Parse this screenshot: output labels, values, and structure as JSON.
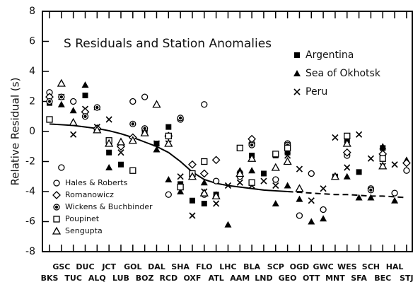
{
  "chart_data": {
    "type": "scatter",
    "title": "S Residuals and Station Anomalies",
    "ylabel": "Relative Residual (s)",
    "ylim": [
      -8,
      8
    ],
    "yticks": [
      -8,
      -6,
      -4,
      -2,
      0,
      2,
      4,
      6,
      8
    ],
    "categories": [
      "BKS",
      "GSC",
      "TUC",
      "DUC",
      "ALQ",
      "JCT",
      "LUB",
      "GOL",
      "BOZ",
      "DAL",
      "RCD",
      "SHA",
      "OXF",
      "FLO",
      "ATL",
      "LHC",
      "AAM",
      "BLA",
      "LND",
      "SCP",
      "GEO",
      "OGD",
      "OTT",
      "GWC",
      "MNT",
      "WES",
      "SFA",
      "SCH",
      "BEC",
      "HAL",
      "STJ"
    ],
    "series": [
      {
        "name": "Argentina",
        "marker": "filled-square",
        "color": "#000",
        "legend": "upper-right",
        "values": [
          1.9,
          null,
          null,
          2.4,
          null,
          -1.4,
          -2.2,
          null,
          0,
          -0.8,
          0.3,
          -3.5,
          -4.6,
          -4.8,
          -4.2,
          null,
          -2.8,
          -1.6,
          -2.8,
          -1.6,
          -1.4,
          null,
          null,
          null,
          -3.0,
          -0.6,
          -2.7,
          null,
          -1.1,
          null,
          null
        ]
      },
      {
        "name": "Sea of Okhotsk",
        "marker": "filled-triangle",
        "color": "#000",
        "legend": "upper-right",
        "values": [
          null,
          1.8,
          1.4,
          3.1,
          1.6,
          -2.4,
          -0.8,
          null,
          null,
          -1.2,
          -3.2,
          -4.0,
          -2.8,
          -3.4,
          -4.2,
          -6.2,
          -2.6,
          -2.6,
          null,
          -4.8,
          -3.6,
          -4.5,
          -6.0,
          -5.8,
          -3.0,
          -3.0,
          -4.4,
          -4.4,
          -1.0,
          -4.6,
          -1.9
        ]
      },
      {
        "name": "Peru",
        "marker": "cross",
        "color": "#000",
        "legend": "upper-right",
        "values": [
          2.2,
          2.3,
          -0.2,
          1.5,
          0.3,
          0.8,
          -1.4,
          -0.5,
          -0.1,
          -0.8,
          -0.8,
          -3.0,
          -5.6,
          -4.0,
          -4.8,
          -3.6,
          -3.4,
          -3.6,
          -3.3,
          -3.6,
          -1.6,
          -2.5,
          -4.6,
          -3.8,
          -0.4,
          -2.4,
          -0.2,
          -1.8,
          -2.3,
          -2.2,
          null
        ]
      },
      {
        "name": "Hales & Roberts",
        "marker": "open-circle",
        "color": "#000",
        "legend": "lower-left",
        "values": [
          2.6,
          -2.4,
          2.0,
          null,
          0.1,
          null,
          null,
          2.0,
          2.3,
          null,
          -4.2,
          0.8,
          null,
          1.8,
          -3.3,
          null,
          -3.0,
          -0.8,
          null,
          -3.2,
          -0.8,
          -5.6,
          -2.8,
          -5.2,
          null,
          -1.6,
          null,
          -3.8,
          null,
          -4.1,
          -2.6
        ]
      },
      {
        "name": "Romanowicz",
        "marker": "open-diamond",
        "color": "#000",
        "legend": "lower-left",
        "values": [
          2.3,
          null,
          null,
          1.3,
          0.2,
          null,
          -1.0,
          -0.4,
          null,
          null,
          -0.3,
          null,
          -2.2,
          -2.8,
          -1.9,
          null,
          null,
          -0.5,
          null,
          null,
          null,
          null,
          null,
          null,
          null,
          -1.4,
          null,
          null,
          -1.5,
          null,
          -2.1
        ]
      },
      {
        "name": "Wickens & Buchbinder",
        "marker": "half-circle",
        "color": "#000",
        "legend": "lower-left",
        "values": [
          2.0,
          2.3,
          null,
          1.0,
          1.6,
          null,
          null,
          0.5,
          0.2,
          null,
          null,
          0.9,
          null,
          -4.2,
          null,
          null,
          null,
          -0.9,
          null,
          null,
          -0.9,
          null,
          null,
          null,
          null,
          null,
          null,
          -3.9,
          null,
          null,
          null
        ]
      },
      {
        "name": "Poupinet",
        "marker": "open-square",
        "color": "#000",
        "legend": "lower-left",
        "values": [
          0.8,
          null,
          null,
          null,
          null,
          -0.6,
          null,
          -2.6,
          null,
          null,
          -0.3,
          -3.7,
          -2.8,
          -2.0,
          null,
          null,
          -1.1,
          -3.4,
          null,
          -1.5,
          -1.1,
          null,
          null,
          null,
          null,
          -0.3,
          null,
          null,
          -1.8,
          null,
          null
        ]
      },
      {
        "name": "Sengupta",
        "marker": "open-triangle",
        "color": "#000",
        "legend": "lower-left",
        "values": [
          null,
          3.2,
          0.6,
          null,
          0.1,
          -0.8,
          -0.7,
          -0.6,
          -0.1,
          1.8,
          -0.8,
          null,
          -3.0,
          -4.1,
          -4.3,
          null,
          -2.8,
          -1.8,
          null,
          -2.4,
          -2.0,
          -3.8,
          null,
          null,
          -3.0,
          -0.8,
          null,
          null,
          -2.3,
          null,
          null
        ]
      }
    ],
    "curves": [
      {
        "style": "solid",
        "values": [
          0.5,
          0.45,
          0.4,
          0.3,
          0.2,
          0.05,
          -0.15,
          -0.4,
          -0.7,
          -1.0,
          -1.4,
          -2.0,
          -2.7,
          -3.2,
          -3.45,
          -3.6,
          -3.7,
          -3.8,
          -3.9,
          -3.95,
          -4.0,
          null,
          null,
          null,
          null,
          null,
          null,
          null,
          null,
          null,
          null
        ]
      },
      {
        "style": "dashed",
        "values": [
          null,
          null,
          null,
          null,
          null,
          null,
          null,
          null,
          null,
          null,
          null,
          null,
          null,
          null,
          null,
          null,
          null,
          null,
          null,
          null,
          -4.0,
          -4.05,
          -4.1,
          -4.15,
          -4.2,
          -4.2,
          -4.25,
          -4.3,
          -4.3,
          -4.35,
          -4.4
        ]
      }
    ]
  }
}
